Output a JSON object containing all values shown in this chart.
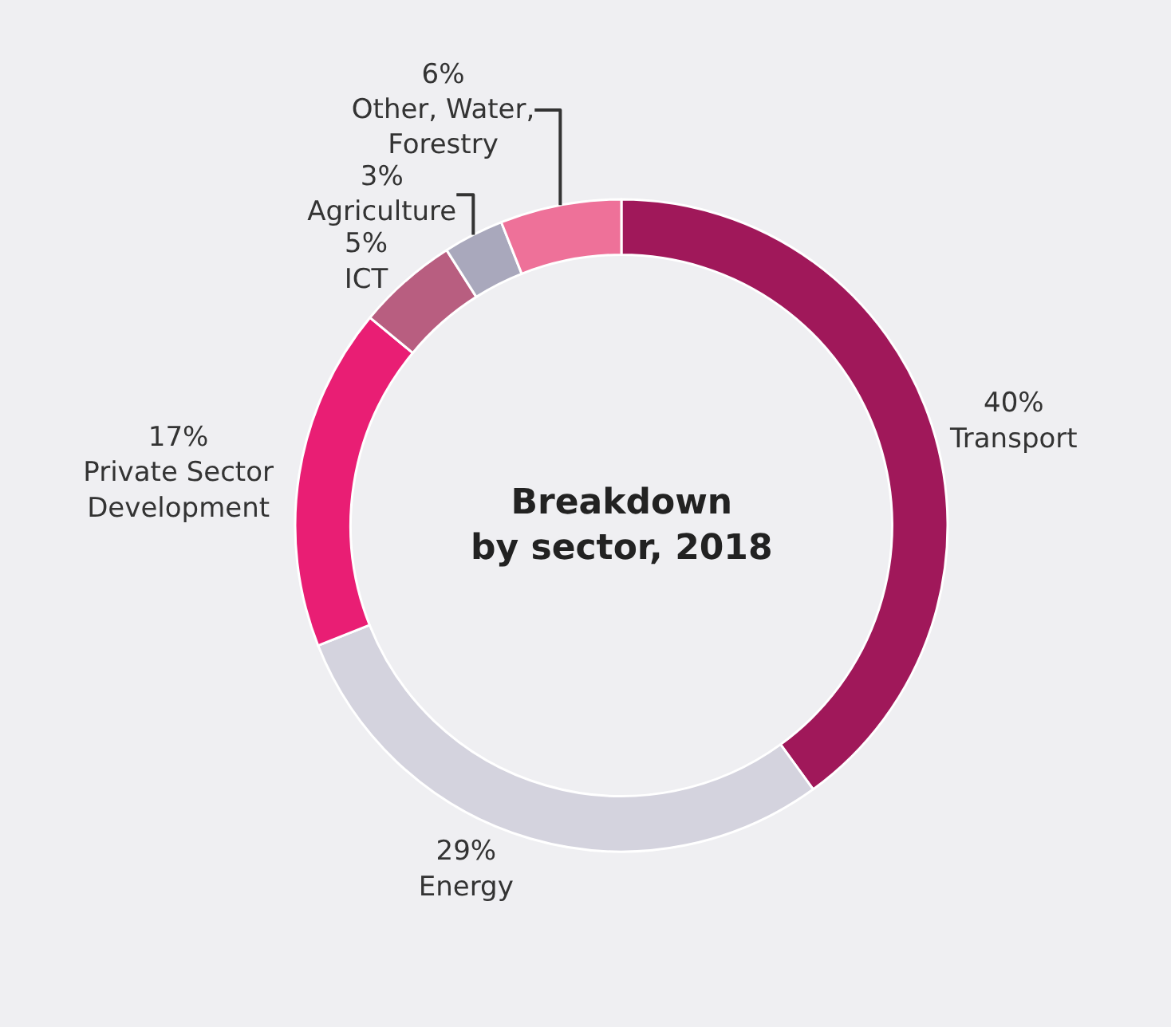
{
  "chart_data": {
    "type": "donut",
    "title": "Breakdown by sector, 2018",
    "categories": [
      "Transport",
      "Energy",
      "Private Sector Development",
      "ICT",
      "Agriculture",
      "Other, Water, Forestry"
    ],
    "values": [
      40,
      29,
      17,
      5,
      3,
      6
    ],
    "value_labels": [
      "40%",
      "29%",
      "17%",
      "5%",
      "3%",
      "6%"
    ],
    "colors": [
      "#a0185a",
      "#d4d3de",
      "#e91e74",
      "#b85e80",
      "#a9a8bc",
      "#ee7199"
    ],
    "legend": false
  }
}
